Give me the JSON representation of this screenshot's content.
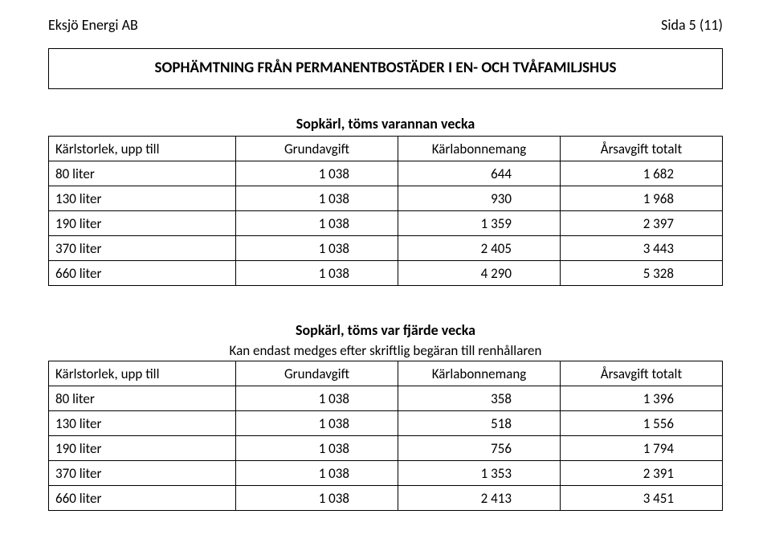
{
  "header": {
    "company": "Eksjö Energi AB",
    "page": "Sida 5 (11)"
  },
  "title": "SOPHÄMTNING FRÅN PERMANENTBOSTÄDER I EN- OCH TVÅFAMILJSHUS",
  "table1": {
    "caption": "Sopkärl, töms varannan vecka",
    "columns": [
      "Kärlstorlek, upp till",
      "Grundavgift",
      "Kärlabonnemang",
      "Årsavgift totalt"
    ],
    "rows": [
      [
        "80 liter",
        "1 038",
        "644",
        "1 682"
      ],
      [
        "130 liter",
        "1 038",
        "930",
        "1 968"
      ],
      [
        "190 liter",
        "1 038",
        "1 359",
        "2 397"
      ],
      [
        "370 liter",
        "1 038",
        "2 405",
        "3 443"
      ],
      [
        "660 liter",
        "1 038",
        "4 290",
        "5 328"
      ]
    ]
  },
  "table2": {
    "caption": "Sopkärl, töms var fjärde vecka",
    "note": "Kan endast medges efter skriftlig begäran till renhållaren",
    "columns": [
      "Kärlstorlek, upp till",
      "Grundavgift",
      "Kärlabonnemang",
      "Årsavgift totalt"
    ],
    "rows": [
      [
        "80 liter",
        "1 038",
        "358",
        "1 396"
      ],
      [
        "130 liter",
        "1 038",
        "518",
        "1 556"
      ],
      [
        "190 liter",
        "1 038",
        "756",
        "1 794"
      ],
      [
        "370 liter",
        "1 038",
        "1 353",
        "2 391"
      ],
      [
        "660 liter",
        "1 038",
        "2 413",
        "3 451"
      ]
    ]
  }
}
